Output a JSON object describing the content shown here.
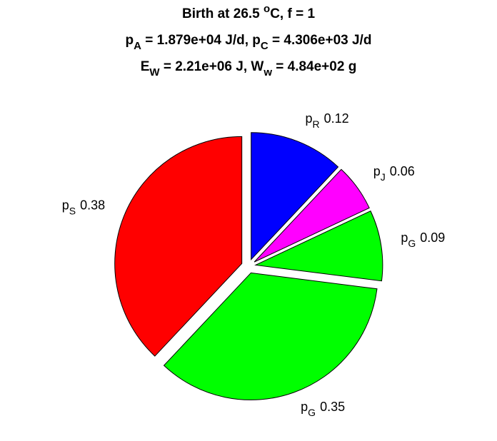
{
  "chart_data": {
    "type": "pie",
    "title_lines": [
      [
        {
          "text": "Birth at 26.5 "
        },
        {
          "text": "o",
          "shift": "sup"
        },
        {
          "text": "C, f = 1"
        }
      ],
      [
        {
          "text": "p"
        },
        {
          "text": "A",
          "shift": "sub"
        },
        {
          "text": " = 1.879e+04 J/d, p"
        },
        {
          "text": "C",
          "shift": "sub"
        },
        {
          "text": " = 4.306e+03 J/d"
        }
      ],
      [
        {
          "text": "E"
        },
        {
          "text": "W",
          "shift": "sub"
        },
        {
          "text": " = 2.21e+06 J, W"
        },
        {
          "text": "w",
          "shift": "sub"
        },
        {
          "text": " = 4.84e+02 g"
        }
      ]
    ],
    "labels": [
      {
        "symbol": "p",
        "subscript": "S"
      },
      {
        "symbol": "p",
        "subscript": "G"
      },
      {
        "symbol": "p",
        "subscript": "G"
      },
      {
        "symbol": "p",
        "subscript": "J"
      },
      {
        "symbol": "p",
        "subscript": "R"
      }
    ],
    "values": [
      0.38,
      0.35,
      0.09,
      0.06,
      0.12
    ],
    "colors": [
      "#ff0000",
      "#00ff00",
      "#00ff00",
      "#ff00ff",
      "#0000ff"
    ],
    "exploded": true
  }
}
